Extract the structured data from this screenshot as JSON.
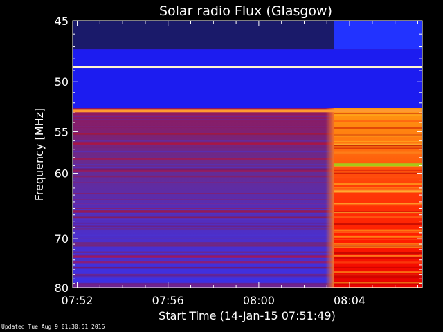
{
  "chart_data": {
    "type": "heatmap",
    "title": "Solar radio Flux (Glasgow)",
    "xlabel": "Start Time (14-Jan-15 07:51:49)",
    "ylabel": "Frequency [MHz]",
    "x_ticks": [
      "07:52",
      "07:56",
      "08:00",
      "08:04"
    ],
    "x_tick_minutes_after_start": [
      0.2,
      4.2,
      8.2,
      12.2
    ],
    "xlim_minutes_after_start": [
      0,
      15.4
    ],
    "y_ticks": [
      45,
      50,
      55,
      60,
      70,
      80
    ],
    "ylim": [
      45,
      80
    ],
    "y_scale": "reciprocal",
    "emission_onset_minutes_after_start": 11.5,
    "bright_lines_mhz": [
      48.7,
      52.8,
      58.9
    ],
    "colormap": [
      "#000000",
      "#0000ff",
      "#6a31c0",
      "#b01858",
      "#ff0000",
      "#ff8c00",
      "#ffff00",
      "#ffffff"
    ]
  },
  "footer": {
    "updated": "Updated Tue Aug  9 01:30:51 2016"
  }
}
